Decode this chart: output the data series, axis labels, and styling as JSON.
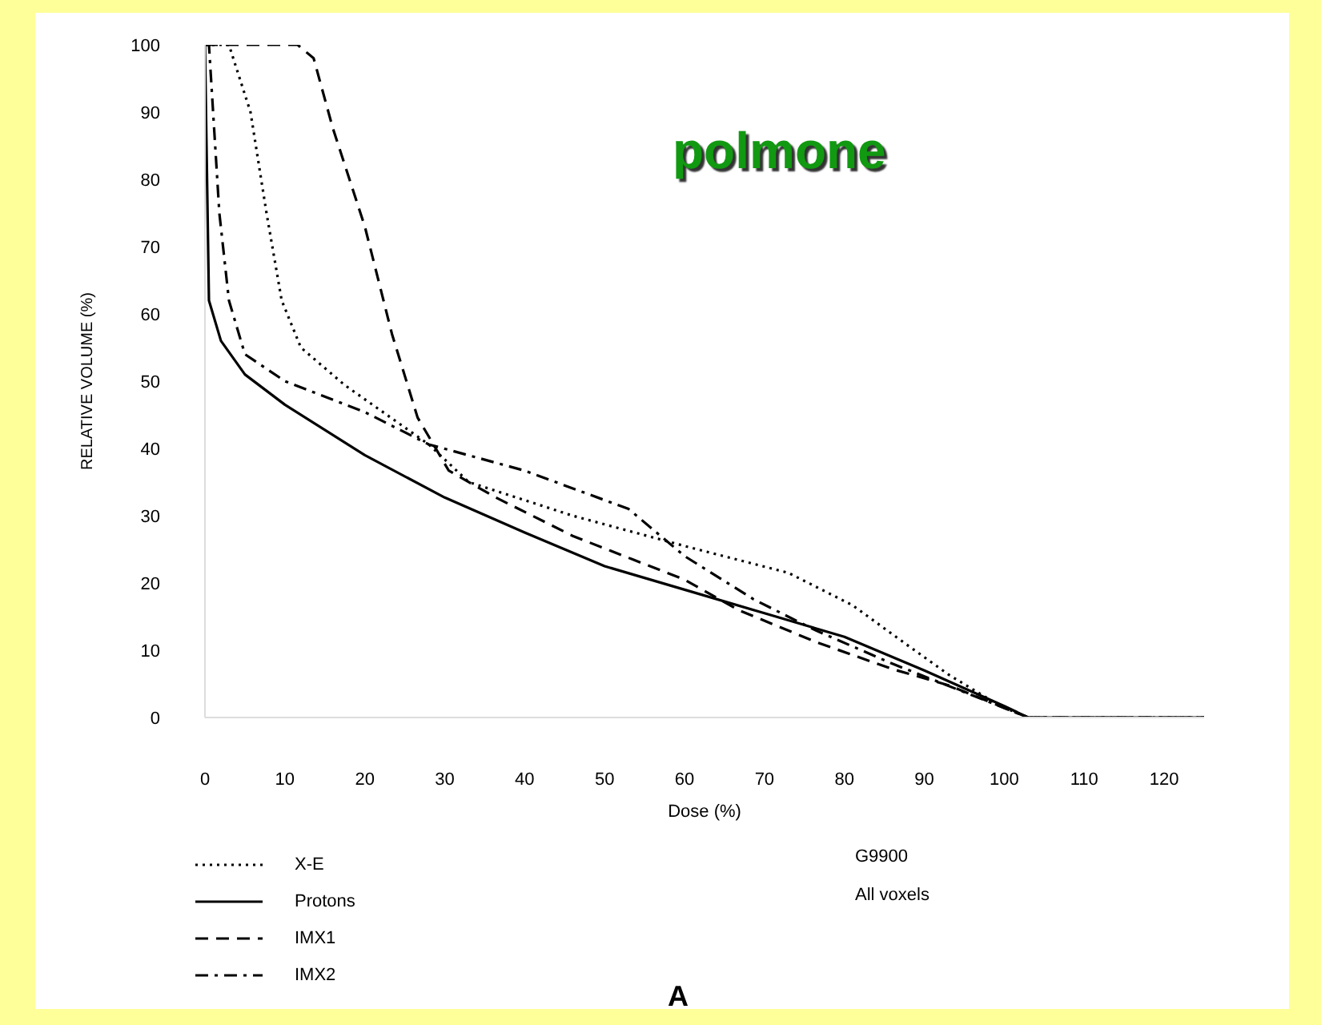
{
  "chart_data": {
    "type": "line",
    "title": "polmone",
    "xlabel": "Dose (%)",
    "ylabel": "RELATIVE VOLUME (%)",
    "xlim": [
      0,
      125
    ],
    "xticks": [
      0,
      10,
      20,
      30,
      40,
      50,
      60,
      70,
      80,
      90,
      100,
      110,
      120
    ],
    "ylim": [
      0,
      100
    ],
    "yticks": [
      0,
      10,
      20,
      30,
      40,
      50,
      60,
      70,
      80,
      90,
      100
    ],
    "grid": false,
    "legend": "bottom left",
    "marker": "none",
    "annotations": [
      "G9900",
      "All voxels",
      "A"
    ],
    "series": [
      {
        "name": "X-E",
        "color": "#000000",
        "line_style": "dotted",
        "x": [
          0,
          3,
          5.7,
          7.7,
          9.6,
          12,
          17.5,
          28,
          33,
          46,
          60,
          73,
          81,
          87.6,
          93,
          99.5,
          103,
          125
        ],
        "values": [
          100,
          100,
          90,
          75,
          62,
          55,
          49.4,
          40.6,
          35,
          30,
          25.5,
          21.5,
          16.7,
          11,
          6.4,
          1.7,
          0,
          0
        ]
      },
      {
        "name": "Protons",
        "color": "#000000",
        "line_style": "solid",
        "x": [
          0,
          0.5,
          2,
          5,
          10,
          20,
          30,
          40,
          50,
          60,
          70,
          80,
          90,
          100,
          103,
          125
        ],
        "values": [
          100,
          62,
          56,
          51,
          46.5,
          39,
          32.7,
          27.5,
          22.5,
          19,
          15.5,
          12,
          7,
          1.7,
          0,
          0
        ]
      },
      {
        "name": "IMX1",
        "color": "#000000",
        "line_style": "dashed",
        "x": [
          0,
          11.6,
          13.6,
          16,
          20,
          23.4,
          26.6,
          30.5,
          36.4,
          46,
          53.5,
          60,
          66.7,
          76.5,
          86,
          93,
          103,
          125
        ],
        "values": [
          100,
          100,
          98,
          87.6,
          73,
          57,
          44.6,
          36.7,
          32.7,
          27,
          23.5,
          20.5,
          16,
          11.2,
          7.2,
          4.8,
          0,
          0
        ]
      },
      {
        "name": "IMX2",
        "color": "#000000",
        "line_style": "dashdot",
        "x": [
          0,
          0.5,
          1.8,
          3,
          5,
          10,
          20,
          28,
          40,
          53,
          60,
          68.6,
          76.5,
          86,
          96,
          103,
          125
        ],
        "values": [
          100,
          100,
          75,
          62,
          54,
          50,
          45.4,
          40.6,
          36.7,
          31,
          24,
          17.6,
          12.9,
          8,
          3.3,
          0,
          0
        ]
      }
    ]
  }
}
